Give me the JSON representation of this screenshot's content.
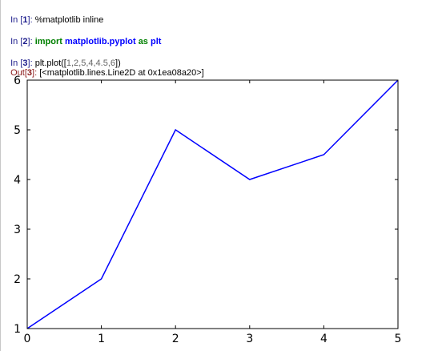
{
  "cells": [
    {
      "prompt_label": "In ",
      "prompt_number": "1",
      "prompt_tail": "]: ",
      "code": "%matplotlib inline"
    },
    {
      "prompt_label": "In ",
      "prompt_number": "2",
      "prompt_tail": "]: ",
      "code_kw1": "import",
      "code_mod": "matplotlib.pyplot",
      "code_kw2": "as",
      "code_alias": "plt"
    },
    {
      "prompt_label": "In ",
      "prompt_number": "3",
      "prompt_tail": "]: ",
      "code_prefix": "plt.plot([",
      "code_args": "1,2,5,4,4.5,6",
      "code_suffix": "])"
    }
  ],
  "output": {
    "prompt_label": "Out",
    "prompt_number": "3",
    "prompt_tail": "]: ",
    "text": "[<matplotlib.lines.Line2D at 0x1ea08a20>]"
  },
  "chart_data": {
    "type": "line",
    "x": [
      0,
      1,
      2,
      3,
      4,
      5
    ],
    "series": [
      {
        "values": [
          1,
          2,
          5,
          4,
          4.5,
          6
        ],
        "color": "#0000ff"
      }
    ],
    "xlim": [
      0,
      5
    ],
    "ylim": [
      1,
      6
    ],
    "xticks": [
      "0",
      "1",
      "2",
      "3",
      "4",
      "5"
    ],
    "yticks": [
      "1",
      "2",
      "3",
      "4",
      "5",
      "6"
    ],
    "grid": false
  }
}
